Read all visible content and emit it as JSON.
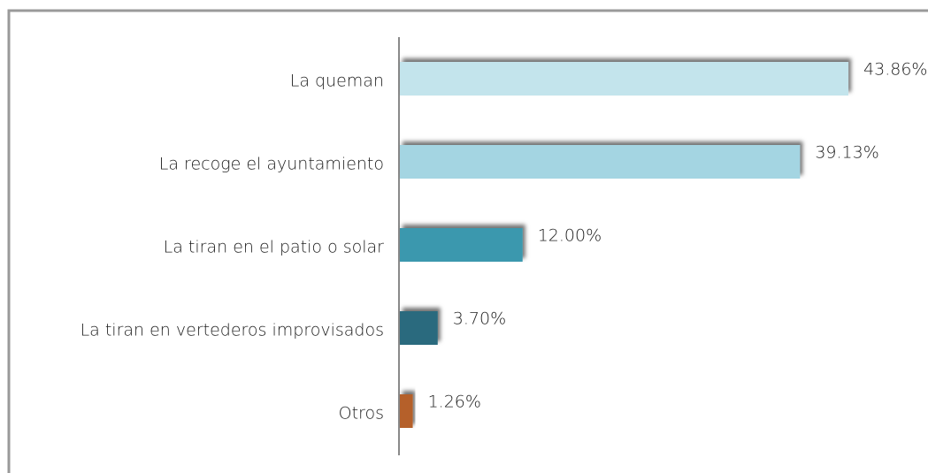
{
  "chart_data": {
    "type": "bar",
    "orientation": "horizontal",
    "categories": [
      "La queman",
      "La recoge el ayuntamiento",
      "La tiran en el patio o solar",
      "La tiran en vertederos improvisados",
      "Otros"
    ],
    "values": [
      43.86,
      39.13,
      12.0,
      3.7,
      1.26
    ],
    "value_labels": [
      "43.86%",
      "39.13%",
      "12.00%",
      "3.70%",
      "1.26%"
    ],
    "colors": [
      "#c3e4ec",
      "#a4d5e2",
      "#3a98ae",
      "#2a6b7e",
      "#b5612a"
    ],
    "xlim": [
      0,
      50
    ]
  }
}
